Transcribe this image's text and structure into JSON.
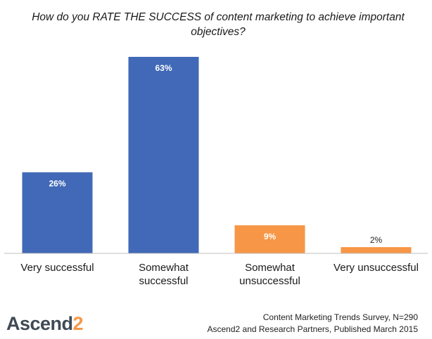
{
  "chart_data": {
    "type": "bar",
    "title": "How do you RATE THE SUCCESS of content marketing to achieve important objectives?",
    "categories": [
      "Very successful",
      "Somewhat successful",
      "Somewhat unsuccessful",
      "Very unsuccessful"
    ],
    "category_lines": [
      [
        "Very successful"
      ],
      [
        "Somewhat",
        "successful"
      ],
      [
        "Somewhat",
        "unsuccessful"
      ],
      [
        "Very unsuccessful"
      ]
    ],
    "values": [
      26,
      63,
      9,
      2
    ],
    "data_labels": [
      "26%",
      "63%",
      "9%",
      "2%"
    ],
    "bar_colors": [
      "#4169b7",
      "#4169b7",
      "#f79646",
      "#f79646"
    ],
    "label_colors": [
      "#ffffff",
      "#ffffff",
      "#ffffff",
      "#222222"
    ],
    "ylim": [
      0,
      63
    ],
    "grid": false,
    "legend": "none"
  },
  "footer": {
    "source_line1": "Content Marketing Trends Survey, N=290",
    "source_line2": "Ascend2 and Research Partners, Published March 2015"
  },
  "logo": {
    "text_main": "Ascend",
    "text_accent": "2",
    "accent_color": "#f79646"
  }
}
